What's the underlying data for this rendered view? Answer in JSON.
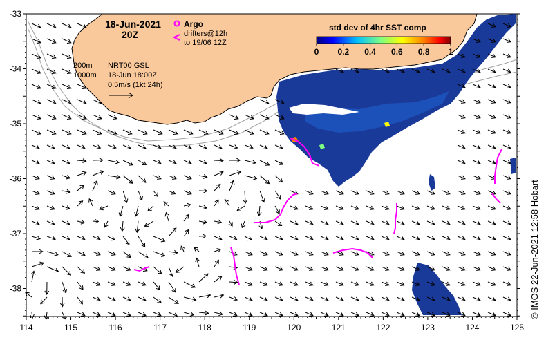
{
  "header": {
    "date": "18-Jun-2021",
    "time": "20Z"
  },
  "legend_argo": {
    "argo_label": "Argo",
    "drifters_label": "drifters@12h",
    "drifters_range": "to 19/06 12Z"
  },
  "colorbar": {
    "title": "std dev of 4hr SST comp",
    "ticks": [
      "0",
      "0.2",
      "0.4",
      "0.6",
      "0.8",
      "1"
    ]
  },
  "contours_legend": {
    "c200": "200m",
    "c1000": "1000m"
  },
  "velocity_legend": {
    "product": "NRT00 GSL",
    "valid": "18-Jun 18:00Z",
    "scale": "0.5m/s (1kt 24h)"
  },
  "credit": "©  IMOS 22-Jun-2021 12:58 Hobart",
  "axes": {
    "x_ticks": [
      "114",
      "115",
      "116",
      "117",
      "118",
      "119",
      "120",
      "121",
      "122",
      "123",
      "124",
      "125"
    ],
    "y_ticks": [
      "-33",
      "-34",
      "-35",
      "-36",
      "-37",
      "-38"
    ]
  },
  "colors": {
    "land": "#f9c89b",
    "sst_main": "#1a3a9a",
    "drifter": "#ff00ff",
    "colorbar_stops": [
      "#00007f",
      "#0000ff",
      "#00bfff",
      "#7fff7f",
      "#ffff00",
      "#ff7f00",
      "#ff0000",
      "#7f0000"
    ]
  }
}
